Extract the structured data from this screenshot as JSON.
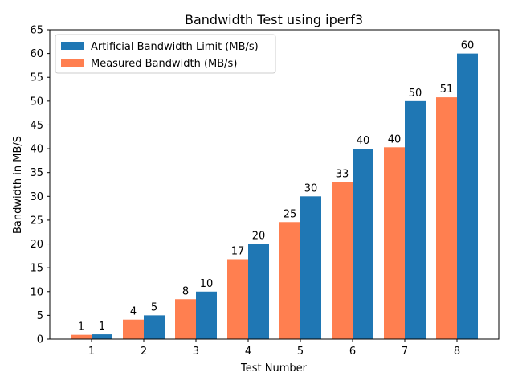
{
  "chart_data": {
    "type": "bar",
    "title": "Bandwidth Test using iperf3",
    "xlabel": "Test Number",
    "ylabel": "Bandwidth in MB/S",
    "categories": [
      "1",
      "2",
      "3",
      "4",
      "5",
      "6",
      "7",
      "8"
    ],
    "ylim": [
      0,
      65
    ],
    "yticks": [
      "0",
      "5",
      "10",
      "15",
      "20",
      "25",
      "30",
      "35",
      "40",
      "45",
      "50",
      "55",
      "60",
      "65"
    ],
    "grid": false,
    "legend_position": "top-left",
    "series": [
      {
        "name": "Measured Bandwidth (MB/s)",
        "color": "#ff7f50",
        "values": [
          0.9,
          4.1,
          8.4,
          16.8,
          24.6,
          33.0,
          40.3,
          50.8
        ],
        "labels": [
          "1",
          "4",
          "8",
          "17",
          "25",
          "33",
          "40",
          "51"
        ]
      },
      {
        "name": "Artificial Bandwidth Limit (MB/s)",
        "color": "#1f77b4",
        "values": [
          1,
          5,
          10,
          20,
          30,
          40,
          50,
          60
        ],
        "labels": [
          "1",
          "5",
          "10",
          "20",
          "30",
          "40",
          "50",
          "60"
        ]
      }
    ],
    "legend_order": [
      1,
      0
    ]
  }
}
